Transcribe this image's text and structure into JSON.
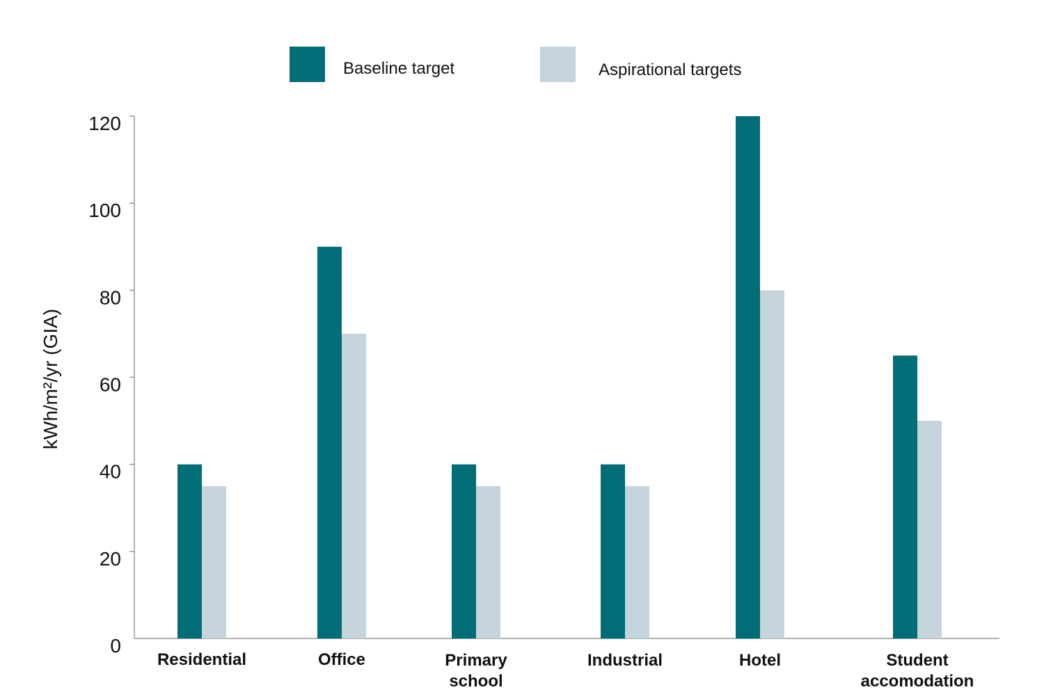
{
  "chart_data": {
    "type": "bar",
    "categories": [
      [
        "Residential"
      ],
      [
        "Office"
      ],
      [
        "Primary",
        "school"
      ],
      [
        "Industrial"
      ],
      [
        "Hotel"
      ],
      [
        "Student",
        "accomodation"
      ]
    ],
    "series": [
      {
        "name": "Baseline target",
        "color": "#006d77",
        "values": [
          40,
          90,
          40,
          40,
          120,
          65
        ]
      },
      {
        "name": "Aspirational targets",
        "color": "#c5d4dc",
        "values": [
          35,
          70,
          35,
          35,
          80,
          50
        ]
      }
    ],
    "title": "",
    "xlabel": "",
    "ylabel": "kWh/m²/yr (GIA)",
    "ylim": [
      0,
      120
    ],
    "yticks": [
      0,
      20,
      40,
      60,
      80,
      100,
      120
    ],
    "grid": false,
    "legend_position": "top-center"
  }
}
